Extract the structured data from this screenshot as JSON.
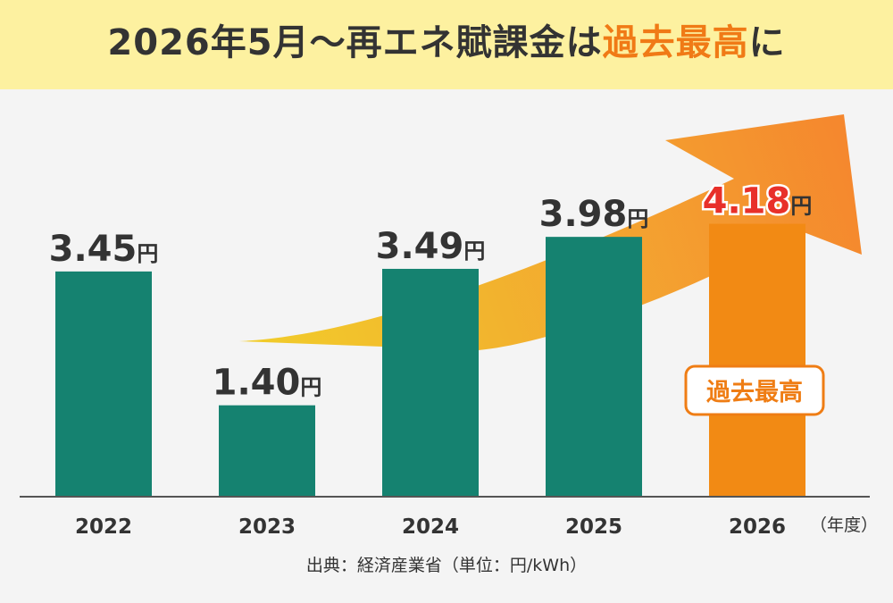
{
  "title": {
    "main": "2026年5月〜再エネ賦課金は",
    "accent": "過去最高",
    "suffix": "に"
  },
  "unit_suffix": "円",
  "fiscal_year_label": "（年度）",
  "source": "出典：経済産業省（単位：円/kWh）",
  "record_badge": "過去最高",
  "colors": {
    "bar": "#158270",
    "highlight_bar": "#f28a14",
    "highlight_label": "#e8302a",
    "label": "#333333",
    "title_band": "#fdf1a0",
    "badge_border": "#ef7d14"
  },
  "chart_data": {
    "type": "bar",
    "categories": [
      "2022",
      "2023",
      "2024",
      "2025",
      "2026"
    ],
    "values": [
      3.45,
      1.4,
      3.49,
      3.98,
      4.18
    ],
    "value_labels": [
      "3.45",
      "1.40",
      "3.49",
      "3.98",
      "4.18"
    ],
    "highlight_index": 4,
    "ylim": [
      0,
      5.2
    ],
    "grid": false,
    "legend": "none"
  }
}
